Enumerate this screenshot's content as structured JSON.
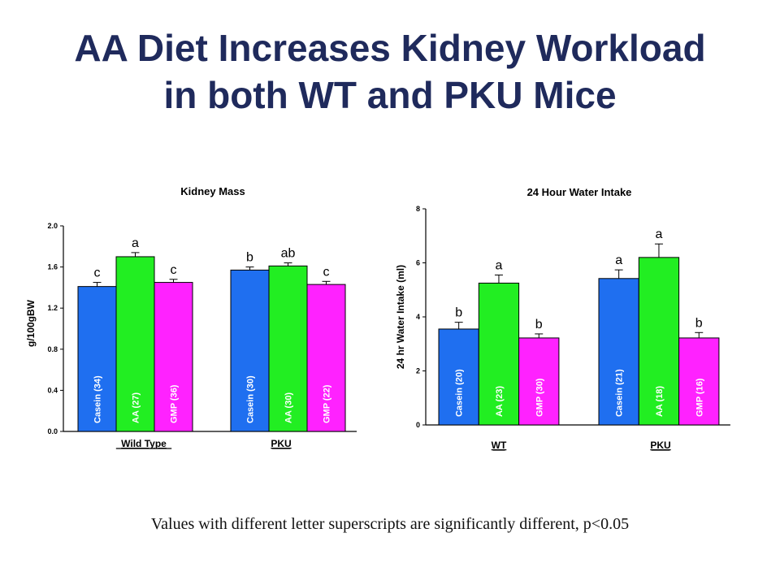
{
  "slide": {
    "title_line1": "AA Diet Increases Kidney Workload",
    "title_line2": "in both WT and PKU Mice",
    "footnote": "Values with different letter superscripts are significantly different, p<0.05"
  },
  "colors": {
    "Casein": "#1f6ff0",
    "AA": "#22ee22",
    "GMP": "#ff22ff",
    "title": "#1f2a5c"
  },
  "chart_data": [
    {
      "type": "bar",
      "title": "Kidney Mass",
      "ylabel": "g/100gBW",
      "ylim": [
        0,
        2.0
      ],
      "yticks": [
        0.0,
        0.4,
        0.8,
        1.2,
        1.6,
        2.0
      ],
      "ytick_labels": [
        "0.0",
        "0.4",
        "0.8",
        "1.2",
        "1.6",
        "2.0"
      ],
      "groups": [
        {
          "label": "Wild Type",
          "bars": [
            {
              "diet": "Casein",
              "label": "Casein (34)",
              "value": 1.41,
              "error": 0.04,
              "letter": "c"
            },
            {
              "diet": "AA",
              "label": "AA (27)",
              "value": 1.7,
              "error": 0.04,
              "letter": "a"
            },
            {
              "diet": "GMP",
              "label": "GMP (36)",
              "value": 1.45,
              "error": 0.03,
              "letter": "c"
            }
          ]
        },
        {
          "label": "PKU",
          "bars": [
            {
              "diet": "Casein",
              "label": "Casein (30)",
              "value": 1.57,
              "error": 0.03,
              "letter": "b"
            },
            {
              "diet": "AA",
              "label": "AA  (30)",
              "value": 1.61,
              "error": 0.03,
              "letter": "ab"
            },
            {
              "diet": "GMP",
              "label": "GMP (22)",
              "value": 1.43,
              "error": 0.03,
              "letter": "c"
            }
          ]
        }
      ]
    },
    {
      "type": "bar",
      "title": "24 Hour Water Intake",
      "ylabel": "24 hr Water Intake (ml)",
      "ylim": [
        0,
        8
      ],
      "yticks": [
        0,
        2,
        4,
        6,
        8
      ],
      "ytick_labels": [
        "0",
        "2",
        "4",
        "6",
        "8"
      ],
      "groups": [
        {
          "label": "WT",
          "bars": [
            {
              "diet": "Casein",
              "label": "Casein (20)",
              "value": 3.55,
              "error": 0.25,
              "letter": "b"
            },
            {
              "diet": "AA",
              "label": "AA (23)",
              "value": 5.25,
              "error": 0.3,
              "letter": "a"
            },
            {
              "diet": "GMP",
              "label": "GMP (30)",
              "value": 3.22,
              "error": 0.15,
              "letter": "b"
            }
          ]
        },
        {
          "label": "PKU",
          "bars": [
            {
              "diet": "Casein",
              "label": "Casein (21)",
              "value": 5.42,
              "error": 0.32,
              "letter": "a"
            },
            {
              "diet": "AA",
              "label": "AA (18)",
              "value": 6.2,
              "error": 0.5,
              "letter": "a"
            },
            {
              "diet": "GMP",
              "label": "GMP (16)",
              "value": 3.22,
              "error": 0.2,
              "letter": "b"
            }
          ]
        }
      ]
    }
  ]
}
